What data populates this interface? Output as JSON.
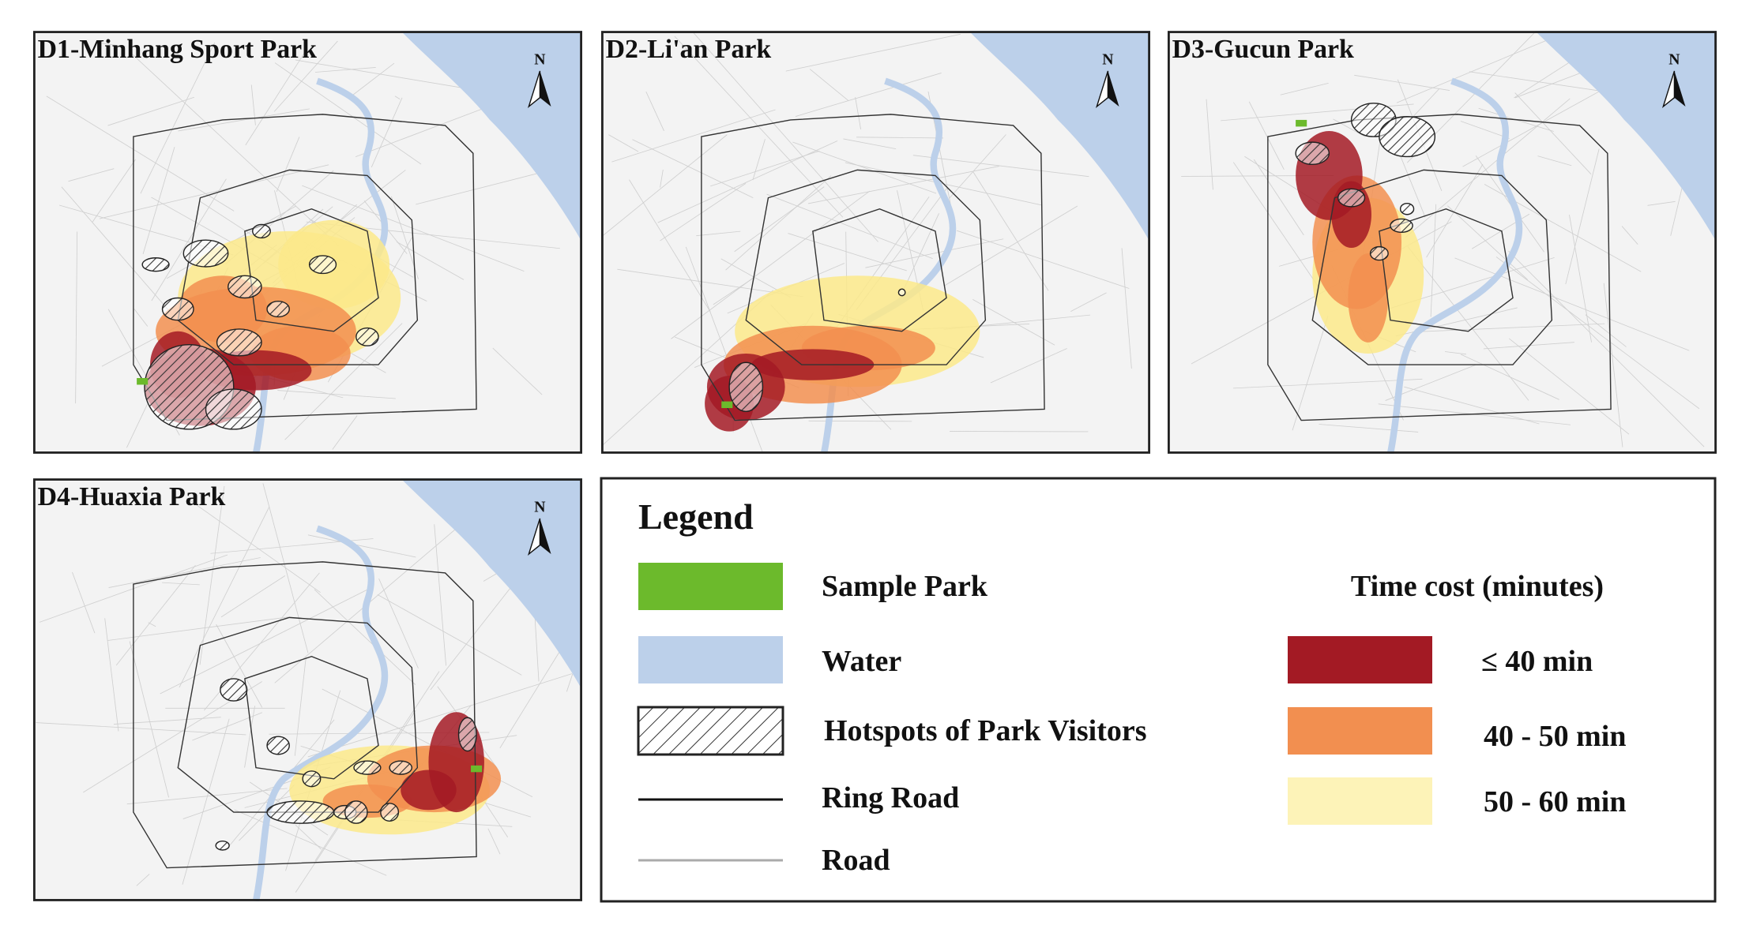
{
  "panels": [
    {
      "title": "D1-Minhang Sport Park",
      "north": "N"
    },
    {
      "title": "D2-Li'an Park",
      "north": "N"
    },
    {
      "title": "D3-Gucun Park",
      "north": "N"
    },
    {
      "title": "D4-Huaxia Park",
      "north": "N"
    }
  ],
  "legend": {
    "title": "Legend",
    "items": [
      "Sample Park",
      "Water",
      "Hotspots of Park Visitors",
      "Ring Road",
      "Road"
    ],
    "time_cost": {
      "title": "Time cost  (minutes)",
      "items": [
        "≤  40 min",
        "40 - 50 min",
        "50 - 60 min"
      ]
    }
  }
}
